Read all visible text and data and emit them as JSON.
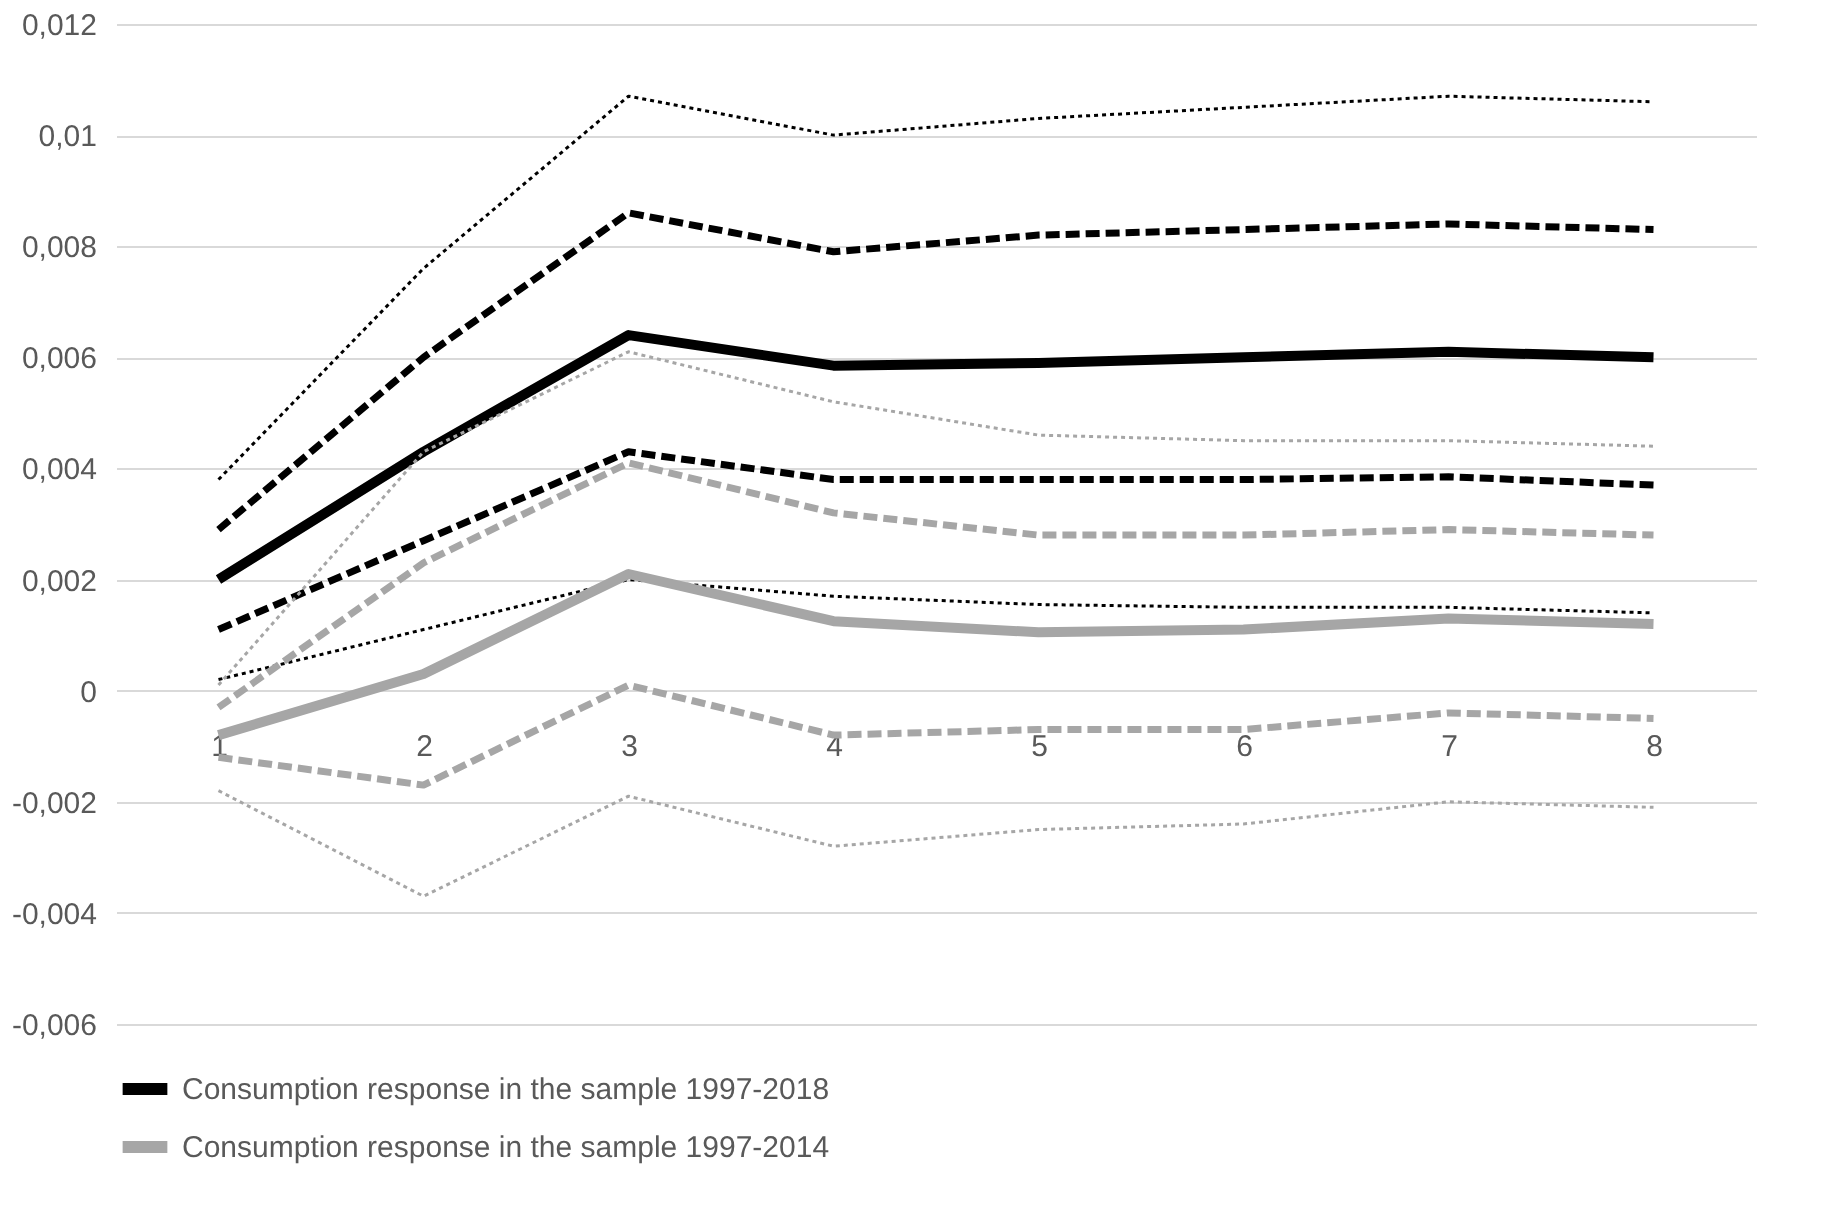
{
  "chart_data": {
    "type": "line",
    "categories": [
      "1",
      "2",
      "3",
      "4",
      "5",
      "6",
      "7",
      "8"
    ],
    "ylim": [
      -0.006,
      0.012
    ],
    "yticks": [
      {
        "value": -0.006,
        "label": "-0,006"
      },
      {
        "value": -0.004,
        "label": "-0,004"
      },
      {
        "value": -0.002,
        "label": "-0,002"
      },
      {
        "value": 0,
        "label": "0"
      },
      {
        "value": 0.002,
        "label": "0,002"
      },
      {
        "value": 0.004,
        "label": "0,004"
      },
      {
        "value": 0.006,
        "label": "0,006"
      },
      {
        "value": 0.008,
        "label": "0,008"
      },
      {
        "value": 0.01,
        "label": "0,01"
      },
      {
        "value": 0.012,
        "label": "0,012"
      }
    ],
    "grid": "y",
    "legend": "bottom",
    "marker": "none",
    "series": [
      {
        "name": "Consumption response in the sample 1997-2018",
        "color": "#000000",
        "line_style": "solid",
        "values": [
          0.002,
          0.0043,
          0.0064,
          0.00585,
          0.0059,
          0.006,
          0.0061,
          0.006
        ]
      },
      {
        "color": "#000000",
        "line_style": "dashed",
        "values": [
          0.0029,
          0.006,
          0.0086,
          0.0079,
          0.0082,
          0.0083,
          0.0084,
          0.0083
        ]
      },
      {
        "color": "#000000",
        "line_style": "dashed",
        "values": [
          0.0011,
          0.0027,
          0.0043,
          0.0038,
          0.0038,
          0.0038,
          0.00385,
          0.0037
        ]
      },
      {
        "color": "#000000",
        "line_style": "dotted",
        "values": [
          0.0038,
          0.0076,
          0.0107,
          0.01,
          0.0103,
          0.0105,
          0.0107,
          0.0106
        ]
      },
      {
        "color": "#000000",
        "line_style": "dotted",
        "values": [
          0.0002,
          0.0011,
          0.002,
          0.0017,
          0.00155,
          0.0015,
          0.0015,
          0.0014
        ]
      },
      {
        "name": "Consumption response in the sample 1997-2014",
        "color": "#a6a6a6",
        "line_style": "solid",
        "values": [
          -0.0008,
          0.0003,
          0.0021,
          0.00125,
          0.00105,
          0.0011,
          0.0013,
          0.0012
        ]
      },
      {
        "color": "#a6a6a6",
        "line_style": "dashed",
        "values": [
          -0.0003,
          0.0023,
          0.0041,
          0.0032,
          0.0028,
          0.0028,
          0.0029,
          0.0028
        ]
      },
      {
        "color": "#a6a6a6",
        "line_style": "dashed",
        "values": [
          -0.0012,
          -0.0017,
          0.0001,
          -0.0008,
          -0.0007,
          -0.0007,
          -0.0004,
          -0.0005
        ]
      },
      {
        "color": "#a6a6a6",
        "line_style": "dotted",
        "values": [
          0.0001,
          0.0043,
          0.0061,
          0.0052,
          0.0046,
          0.0045,
          0.0045,
          0.0044
        ]
      },
      {
        "color": "#a6a6a6",
        "line_style": "dotted",
        "values": [
          -0.0018,
          -0.0037,
          -0.0019,
          -0.0028,
          -0.0025,
          -0.0024,
          -0.002,
          -0.0021
        ]
      }
    ]
  }
}
